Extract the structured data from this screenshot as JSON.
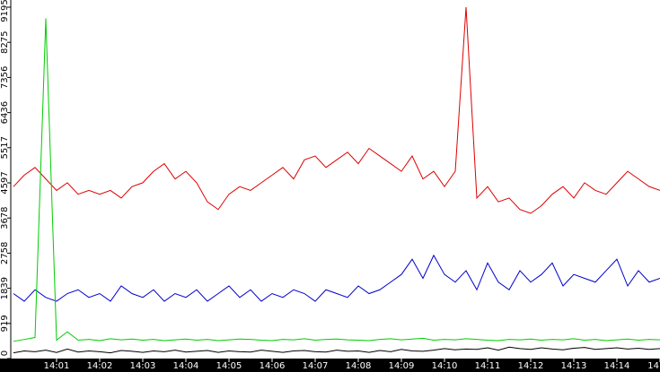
{
  "chart_data": {
    "type": "line",
    "categories": [
      null,
      null,
      null,
      null,
      "14:01",
      null,
      null,
      null,
      "14:02",
      null,
      null,
      null,
      "14:03",
      null,
      null,
      null,
      "14:04",
      null,
      null,
      null,
      "14:05",
      null,
      null,
      null,
      "14:06",
      null,
      null,
      null,
      "14:07",
      null,
      null,
      null,
      "14:08",
      null,
      null,
      null,
      "14:09",
      null,
      null,
      null,
      "14:10",
      null,
      null,
      null,
      "14:11",
      null,
      null,
      null,
      "14:12",
      null,
      null,
      null,
      "14:13",
      null,
      null,
      null,
      "14:14",
      null,
      null,
      null,
      "14"
    ],
    "ylim": [
      0,
      9195
    ],
    "yticks": [
      0,
      919,
      1839,
      2758,
      3678,
      4597,
      5517,
      6436,
      7356,
      8275,
      9195
    ],
    "series": [
      {
        "color": "#dd0000",
        "values": [
          4500,
          4800,
          5000,
          4700,
          4400,
          4600,
          4300,
          4400,
          4300,
          4400,
          4200,
          4500,
          4600,
          4900,
          5100,
          4700,
          4900,
          4600,
          4100,
          3900,
          4300,
          4500,
          4400,
          4600,
          4800,
          5000,
          4700,
          5200,
          5300,
          5000,
          5200,
          5400,
          5100,
          5500,
          5300,
          5100,
          4900,
          5300,
          4700,
          4900,
          4500,
          4900,
          9195,
          4200,
          4500,
          4100,
          4200,
          3900,
          3800,
          4000,
          4300,
          4500,
          4200,
          4600,
          4400,
          4300,
          4600,
          4900,
          4700,
          4500,
          4400
        ]
      },
      {
        "color": "#0000cc",
        "values": [
          1700,
          1500,
          1800,
          1600,
          1500,
          1700,
          1800,
          1600,
          1700,
          1500,
          1900,
          1700,
          1600,
          1800,
          1500,
          1700,
          1600,
          1800,
          1500,
          1700,
          1900,
          1600,
          1800,
          1500,
          1700,
          1600,
          1800,
          1700,
          1500,
          1800,
          1700,
          1600,
          1900,
          1700,
          1800,
          2000,
          2200,
          2600,
          2100,
          2700,
          2200,
          2000,
          2300,
          1800,
          2500,
          2000,
          1800,
          2300,
          2000,
          2200,
          2500,
          1900,
          2200,
          2100,
          2000,
          2300,
          2600,
          1900,
          2300,
          2000,
          2100
        ]
      },
      {
        "color": "#00cc00",
        "values": [
          450,
          500,
          550,
          8900,
          480,
          700,
          480,
          500,
          470,
          520,
          490,
          510,
          480,
          500,
          470,
          490,
          510,
          480,
          500,
          470,
          490,
          510,
          500,
          480,
          470,
          500,
          490,
          520,
          480,
          500,
          510,
          490,
          480,
          470,
          500,
          520,
          490,
          510,
          530,
          480,
          500,
          490,
          520,
          500,
          480,
          470,
          500,
          490,
          510,
          480,
          500,
          490,
          520,
          480,
          500,
          470,
          490,
          510,
          480,
          500,
          490
        ]
      },
      {
        "color": "#000000",
        "values": [
          150,
          200,
          180,
          220,
          160,
          250,
          170,
          200,
          180,
          150,
          210,
          190,
          160,
          200,
          180,
          220,
          170,
          190,
          210,
          160,
          200,
          180,
          170,
          220,
          190,
          160,
          200,
          210,
          180,
          170,
          220,
          190,
          200,
          160,
          210,
          180,
          240,
          200,
          190,
          220,
          260,
          230,
          250,
          240,
          280,
          220,
          300,
          260,
          240,
          280,
          250,
          230,
          270,
          290,
          240,
          260,
          280,
          250,
          270,
          240,
          260
        ]
      }
    ]
  }
}
